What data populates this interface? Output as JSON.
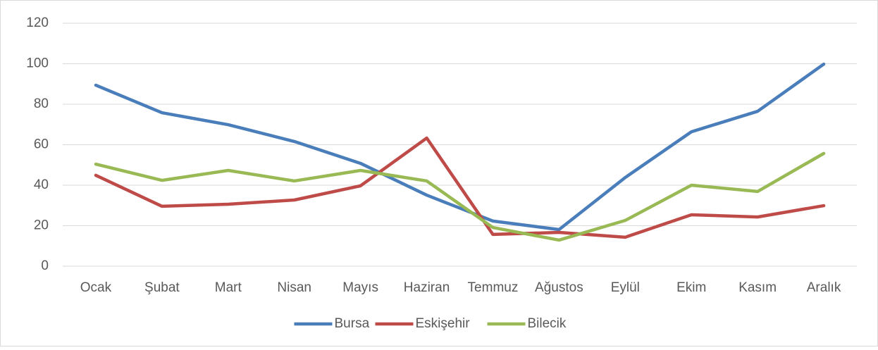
{
  "chart_data": {
    "type": "line",
    "categories": [
      "Ocak",
      "Şubat",
      "Mart",
      "Nisan",
      "Mayıs",
      "Haziran",
      "Temmuz",
      "Ağustos",
      "Eylül",
      "Ekim",
      "Kasım",
      "Aralık"
    ],
    "series": [
      {
        "name": "Bursa",
        "color": "#4a7ebb",
        "values": [
          89.4,
          75.8,
          69.9,
          61.6,
          50.8,
          35.1,
          22.3,
          18.1,
          43.8,
          66.4,
          76.5,
          99.8
        ]
      },
      {
        "name": "Eskişehir",
        "color": "#be4b48",
        "values": [
          44.9,
          29.6,
          30.6,
          32.7,
          39.7,
          63.3,
          15.7,
          16.7,
          14.3,
          25.4,
          24.3,
          29.9
        ]
      },
      {
        "name": "Bilecik",
        "color": "#98b954",
        "values": [
          50.4,
          42.4,
          47.3,
          42.1,
          47.3,
          42.1,
          19.1,
          12.9,
          22.6,
          40.0,
          36.9,
          55.7
        ]
      }
    ],
    "ylim": [
      0,
      120
    ],
    "yticks": [
      0,
      20,
      40,
      60,
      80,
      100,
      120
    ],
    "grid": true,
    "legend": "bottom"
  }
}
